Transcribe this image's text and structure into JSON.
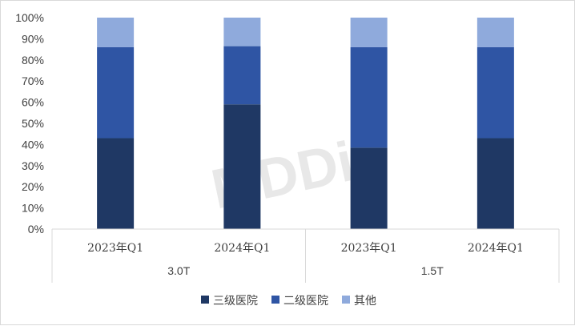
{
  "chart_data": {
    "type": "bar",
    "stacked": true,
    "percent": true,
    "y_ticks": [
      "0%",
      "10%",
      "20%",
      "30%",
      "40%",
      "50%",
      "60%",
      "70%",
      "80%",
      "90%",
      "100%"
    ],
    "ylim": [
      0,
      100
    ],
    "categories": [
      "2023年Q1",
      "2024年Q1",
      "2023年Q1",
      "2024年Q1"
    ],
    "groups": [
      {
        "label": "3.0T",
        "span": [
          0,
          1
        ]
      },
      {
        "label": "1.5T",
        "span": [
          2,
          3
        ]
      }
    ],
    "series": [
      {
        "name": "三级医院",
        "color": "#1f3864",
        "values": [
          43,
          59,
          38.5,
          43
        ]
      },
      {
        "name": "二级医院",
        "color": "#2f55a4",
        "values": [
          43,
          27.5,
          47.5,
          43
        ]
      },
      {
        "name": "其他",
        "color": "#8faadc",
        "values": [
          14,
          13.5,
          14,
          14
        ]
      }
    ],
    "legend_position": "bottom",
    "grid": false
  },
  "watermark": "MDDi"
}
